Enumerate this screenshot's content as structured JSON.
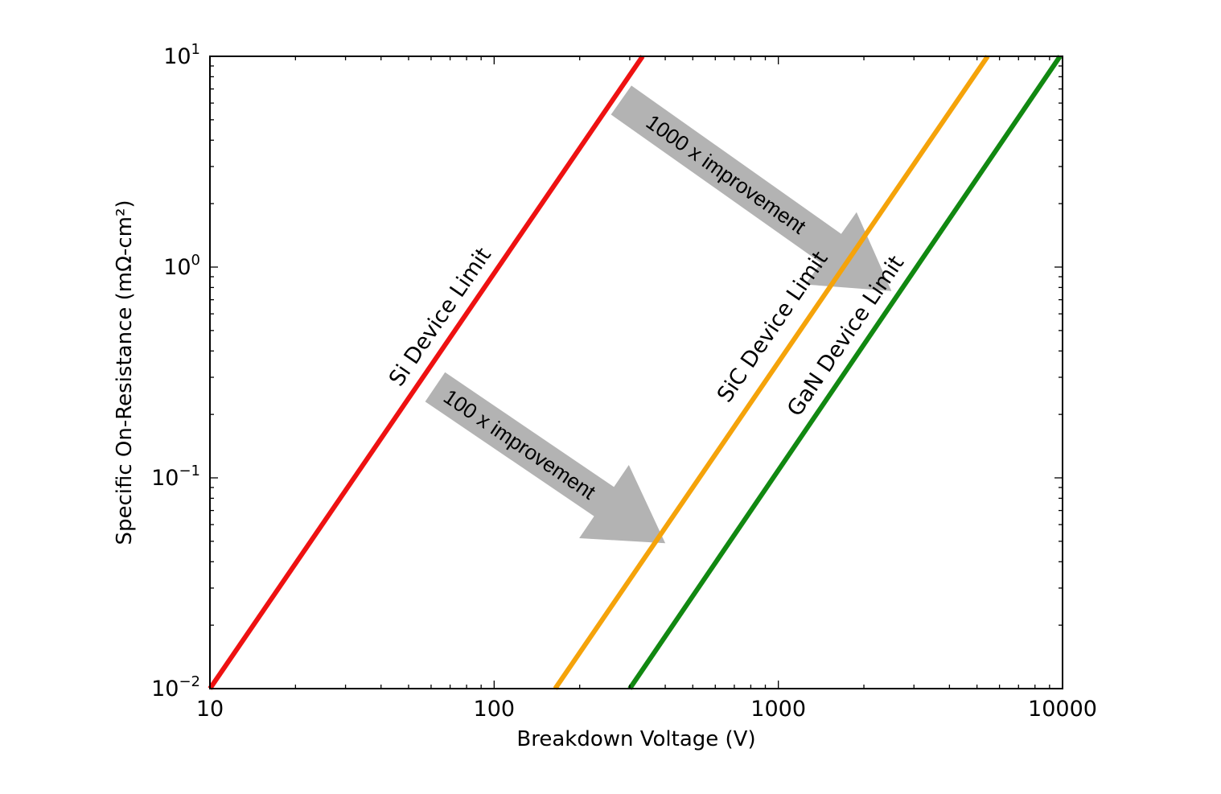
{
  "chart_data": {
    "type": "line",
    "xlabel": "Breakdown Voltage (V)",
    "ylabel": "Specific On-Resistance (mΩ-cm²)",
    "xscale": "log",
    "yscale": "log",
    "xlim": [
      10,
      10000
    ],
    "ylim": [
      0.01,
      10
    ],
    "grid": false,
    "x_ticks": [
      {
        "value": 10,
        "label": "10"
      },
      {
        "value": 100,
        "label": "100"
      },
      {
        "value": 1000,
        "label": "1000"
      },
      {
        "value": 10000,
        "label": "10000"
      }
    ],
    "y_ticks": [
      {
        "value": 0.01,
        "base": "10",
        "exp": "−2"
      },
      {
        "value": 0.1,
        "base": "10",
        "exp": "−1"
      },
      {
        "value": 1,
        "base": "10",
        "exp": "0"
      },
      {
        "value": 10,
        "base": "10",
        "exp": "1"
      }
    ],
    "series": [
      {
        "name": "Si Device Limit",
        "color": "#ee1111",
        "x": [
          10,
          333
        ],
        "y": [
          0.01,
          10
        ]
      },
      {
        "name": "SiC Device Limit",
        "color": "#f5a30a",
        "x": [
          164,
          5450
        ],
        "y": [
          0.01,
          10
        ]
      },
      {
        "name": "GaN Device Limit",
        "color": "#118811",
        "x": [
          300,
          9800
        ],
        "y": [
          0.01,
          10
        ]
      }
    ],
    "annotations": [
      {
        "text": "100 x improvement",
        "type": "arrow",
        "color": "#b3b3b3",
        "from": {
          "x": 62,
          "y": 0.27
        },
        "to": {
          "x": 400,
          "y": 0.049
        }
      },
      {
        "text": "1000 x improvement",
        "type": "arrow",
        "color": "#b3b3b3",
        "from": {
          "x": 280,
          "y": 6.2
        },
        "to": {
          "x": 2500,
          "y": 0.77
        }
      }
    ]
  }
}
